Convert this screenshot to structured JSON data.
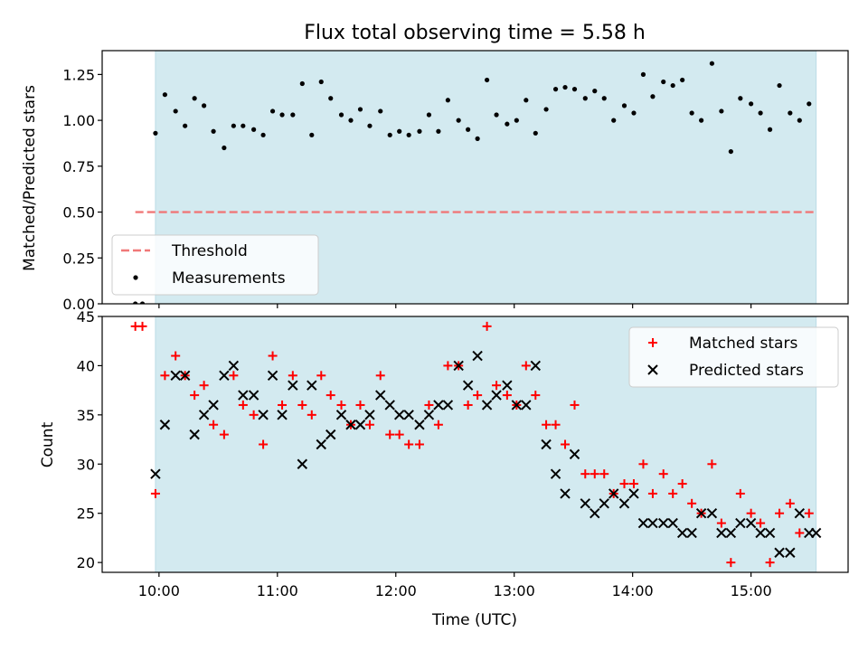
{
  "chart_data": [
    {
      "type": "scatter",
      "title": "Flux total observing time = 5.58 h",
      "xlabel": "",
      "ylabel": "Matched/Predicted stars",
      "ylim": [
        0,
        1.38
      ],
      "yticks": [
        0.0,
        0.25,
        0.5,
        0.75,
        1.0,
        1.25
      ],
      "ytick_labels": [
        "0.00",
        "0.25",
        "0.50",
        "0.75",
        "1.00",
        "1.25"
      ],
      "x_unit": "hours (UTC)",
      "xlim": [
        9.52,
        15.82
      ],
      "observing_window": [
        9.97,
        15.55
      ],
      "colors": {
        "window": "#d3eaf0",
        "threshold": "#f07878",
        "measurement": "#000000"
      },
      "legend": {
        "placement": "lower-left",
        "entries": [
          {
            "name": "threshold",
            "label": "Threshold"
          },
          {
            "name": "measurement",
            "label": "Measurements"
          }
        ]
      },
      "threshold": {
        "name": "Threshold",
        "y": 0.5,
        "x_range": [
          9.8,
          15.55
        ]
      },
      "series": [
        {
          "name": "Measurements",
          "points": [
            [
              9.8,
              0.0
            ],
            [
              9.86,
              0.0
            ],
            [
              9.97,
              0.93
            ],
            [
              10.05,
              1.14
            ],
            [
              10.14,
              1.05
            ],
            [
              10.22,
              0.97
            ],
            [
              10.3,
              1.12
            ],
            [
              10.38,
              1.08
            ],
            [
              10.46,
              0.94
            ],
            [
              10.55,
              0.85
            ],
            [
              10.63,
              0.97
            ],
            [
              10.71,
              0.97
            ],
            [
              10.8,
              0.95
            ],
            [
              10.88,
              0.92
            ],
            [
              10.96,
              1.05
            ],
            [
              11.04,
              1.03
            ],
            [
              11.13,
              1.03
            ],
            [
              11.21,
              1.2
            ],
            [
              11.29,
              0.92
            ],
            [
              11.37,
              1.21
            ],
            [
              11.45,
              1.12
            ],
            [
              11.54,
              1.03
            ],
            [
              11.62,
              1.0
            ],
            [
              11.7,
              1.06
            ],
            [
              11.78,
              0.97
            ],
            [
              11.87,
              1.05
            ],
            [
              11.95,
              0.92
            ],
            [
              12.03,
              0.94
            ],
            [
              12.11,
              0.92
            ],
            [
              12.2,
              0.94
            ],
            [
              12.28,
              1.03
            ],
            [
              12.36,
              0.94
            ],
            [
              12.44,
              1.11
            ],
            [
              12.53,
              1.0
            ],
            [
              12.61,
              0.95
            ],
            [
              12.69,
              0.9
            ],
            [
              12.77,
              1.22
            ],
            [
              12.85,
              1.03
            ],
            [
              12.94,
              0.98
            ],
            [
              13.02,
              1.0
            ],
            [
              13.1,
              1.11
            ],
            [
              13.18,
              0.93
            ],
            [
              13.27,
              1.06
            ],
            [
              13.35,
              1.17
            ],
            [
              13.43,
              1.18
            ],
            [
              13.51,
              1.17
            ],
            [
              13.6,
              1.12
            ],
            [
              13.68,
              1.16
            ],
            [
              13.76,
              1.12
            ],
            [
              13.84,
              1.0
            ],
            [
              13.93,
              1.08
            ],
            [
              14.01,
              1.04
            ],
            [
              14.09,
              1.25
            ],
            [
              14.17,
              1.13
            ],
            [
              14.26,
              1.21
            ],
            [
              14.34,
              1.19
            ],
            [
              14.42,
              1.22
            ],
            [
              14.5,
              1.04
            ],
            [
              14.58,
              1.0
            ],
            [
              14.67,
              1.31
            ],
            [
              14.75,
              1.05
            ],
            [
              14.83,
              0.83
            ],
            [
              14.91,
              1.12
            ],
            [
              15.0,
              1.09
            ],
            [
              15.08,
              1.04
            ],
            [
              15.16,
              0.95
            ],
            [
              15.24,
              1.19
            ],
            [
              15.33,
              1.04
            ],
            [
              15.41,
              1.0
            ],
            [
              15.49,
              1.09
            ]
          ]
        }
      ]
    },
    {
      "type": "scatter",
      "title": "",
      "xlabel": "Time (UTC)",
      "ylabel": "Count",
      "ylim": [
        19,
        45
      ],
      "yticks": [
        20,
        25,
        30,
        35,
        40,
        45
      ],
      "ytick_labels": [
        "20",
        "25",
        "30",
        "35",
        "40",
        "45"
      ],
      "x_unit": "hours (UTC)",
      "xlim": [
        9.52,
        15.82
      ],
      "xticks": [
        10,
        11,
        12,
        13,
        14,
        15
      ],
      "xtick_labels": [
        "10:00",
        "11:00",
        "12:00",
        "13:00",
        "14:00",
        "15:00"
      ],
      "observing_window": [
        9.97,
        15.55
      ],
      "colors": {
        "window": "#d3eaf0",
        "matched": "#ff0000",
        "predicted": "#000000"
      },
      "legend": {
        "placement": "top-right",
        "entries": [
          {
            "name": "matched",
            "label": "Matched stars"
          },
          {
            "name": "predicted",
            "label": "Predicted stars"
          }
        ]
      },
      "series": [
        {
          "name": "Matched stars",
          "marker": "plus",
          "points": [
            [
              9.8,
              44
            ],
            [
              9.86,
              44
            ],
            [
              9.97,
              27
            ],
            [
              10.05,
              39
            ],
            [
              10.14,
              41
            ],
            [
              10.22,
              39
            ],
            [
              10.3,
              37
            ],
            [
              10.38,
              38
            ],
            [
              10.46,
              34
            ],
            [
              10.55,
              33
            ],
            [
              10.63,
              39
            ],
            [
              10.71,
              36
            ],
            [
              10.8,
              35
            ],
            [
              10.88,
              32
            ],
            [
              10.96,
              41
            ],
            [
              11.04,
              36
            ],
            [
              11.13,
              39
            ],
            [
              11.21,
              36
            ],
            [
              11.29,
              35
            ],
            [
              11.37,
              39
            ],
            [
              11.45,
              37
            ],
            [
              11.54,
              36
            ],
            [
              11.62,
              34
            ],
            [
              11.7,
              36
            ],
            [
              11.78,
              34
            ],
            [
              11.87,
              39
            ],
            [
              11.95,
              33
            ],
            [
              12.03,
              33
            ],
            [
              12.11,
              32
            ],
            [
              12.2,
              32
            ],
            [
              12.28,
              36
            ],
            [
              12.36,
              34
            ],
            [
              12.44,
              40
            ],
            [
              12.53,
              40
            ],
            [
              12.61,
              36
            ],
            [
              12.69,
              37
            ],
            [
              12.77,
              44
            ],
            [
              12.85,
              38
            ],
            [
              12.94,
              37
            ],
            [
              13.02,
              36
            ],
            [
              13.1,
              40
            ],
            [
              13.18,
              37
            ],
            [
              13.27,
              34
            ],
            [
              13.35,
              34
            ],
            [
              13.43,
              32
            ],
            [
              13.51,
              36
            ],
            [
              13.6,
              29
            ],
            [
              13.68,
              29
            ],
            [
              13.76,
              29
            ],
            [
              13.84,
              27
            ],
            [
              13.93,
              28
            ],
            [
              14.01,
              28
            ],
            [
              14.09,
              30
            ],
            [
              14.17,
              27
            ],
            [
              14.26,
              29
            ],
            [
              14.34,
              27
            ],
            [
              14.42,
              28
            ],
            [
              14.5,
              26
            ],
            [
              14.58,
              25
            ],
            [
              14.67,
              30
            ],
            [
              14.75,
              24
            ],
            [
              14.83,
              20
            ],
            [
              14.91,
              27
            ],
            [
              15.0,
              25
            ],
            [
              15.08,
              24
            ],
            [
              15.16,
              20
            ],
            [
              15.24,
              25
            ],
            [
              15.33,
              26
            ],
            [
              15.41,
              23
            ],
            [
              15.49,
              25
            ]
          ]
        },
        {
          "name": "Predicted stars",
          "marker": "x",
          "points": [
            [
              9.97,
              29
            ],
            [
              10.05,
              34
            ],
            [
              10.14,
              39
            ],
            [
              10.22,
              39
            ],
            [
              10.3,
              33
            ],
            [
              10.38,
              35
            ],
            [
              10.46,
              36
            ],
            [
              10.55,
              39
            ],
            [
              10.63,
              40
            ],
            [
              10.71,
              37
            ],
            [
              10.8,
              37
            ],
            [
              10.88,
              35
            ],
            [
              10.96,
              39
            ],
            [
              11.04,
              35
            ],
            [
              11.13,
              38
            ],
            [
              11.21,
              30
            ],
            [
              11.29,
              38
            ],
            [
              11.37,
              32
            ],
            [
              11.45,
              33
            ],
            [
              11.54,
              35
            ],
            [
              11.62,
              34
            ],
            [
              11.7,
              34
            ],
            [
              11.78,
              35
            ],
            [
              11.87,
              37
            ],
            [
              11.95,
              36
            ],
            [
              12.03,
              35
            ],
            [
              12.11,
              35
            ],
            [
              12.2,
              34
            ],
            [
              12.28,
              35
            ],
            [
              12.36,
              36
            ],
            [
              12.44,
              36
            ],
            [
              12.53,
              40
            ],
            [
              12.61,
              38
            ],
            [
              12.69,
              41
            ],
            [
              12.77,
              36
            ],
            [
              12.85,
              37
            ],
            [
              12.94,
              38
            ],
            [
              13.02,
              36
            ],
            [
              13.1,
              36
            ],
            [
              13.18,
              40
            ],
            [
              13.27,
              32
            ],
            [
              13.35,
              29
            ],
            [
              13.43,
              27
            ],
            [
              13.51,
              31
            ],
            [
              13.6,
              26
            ],
            [
              13.68,
              25
            ],
            [
              13.76,
              26
            ],
            [
              13.84,
              27
            ],
            [
              13.93,
              26
            ],
            [
              14.01,
              27
            ],
            [
              14.09,
              24
            ],
            [
              14.17,
              24
            ],
            [
              14.26,
              24
            ],
            [
              14.34,
              24
            ],
            [
              14.42,
              23
            ],
            [
              14.5,
              23
            ],
            [
              14.58,
              25
            ],
            [
              14.67,
              25
            ],
            [
              14.75,
              23
            ],
            [
              14.83,
              23
            ],
            [
              14.91,
              24
            ],
            [
              15.0,
              24
            ],
            [
              15.08,
              23
            ],
            [
              15.16,
              23
            ],
            [
              15.24,
              21
            ],
            [
              15.33,
              21
            ],
            [
              15.41,
              25
            ],
            [
              15.49,
              23
            ],
            [
              15.55,
              23
            ]
          ]
        }
      ]
    }
  ]
}
